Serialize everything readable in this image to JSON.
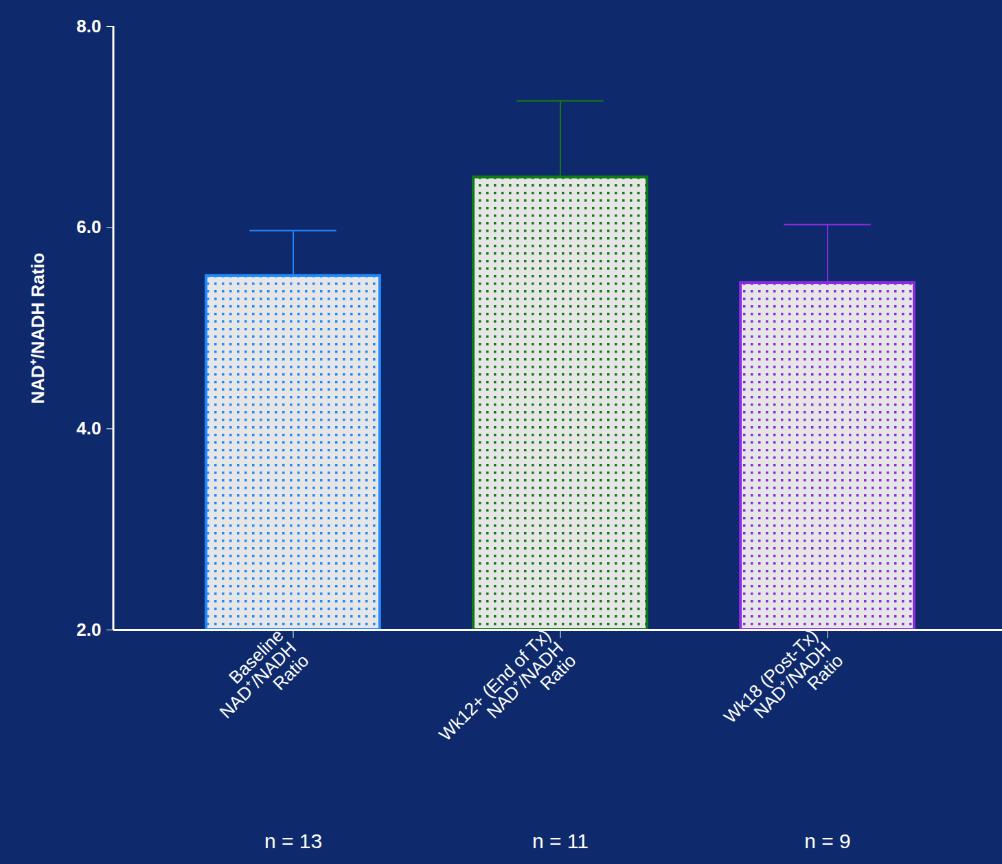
{
  "chart_data": {
    "type": "bar",
    "ylabel": "NAD⁺/NADH Ratio",
    "categories": [
      "Baseline\nNAD⁺/NADH\nRatio",
      "Wk12+ (End of Tx)\nNAD⁺/NADH\nRatio",
      "Wk18 (Post-Tx)\nNAD⁺/NADH\nRatio"
    ],
    "values": [
      5.52,
      6.5,
      5.45
    ],
    "errors": [
      0.45,
      0.76,
      0.58
    ],
    "colors": [
      "#1e88ff",
      "#137a13",
      "#8a2be2"
    ],
    "annotations": [
      "n = 13",
      "n = 11",
      "n = 9"
    ],
    "ylim": [
      2,
      8
    ],
    "yticks": [
      2,
      4,
      6,
      8
    ],
    "grid": false
  }
}
